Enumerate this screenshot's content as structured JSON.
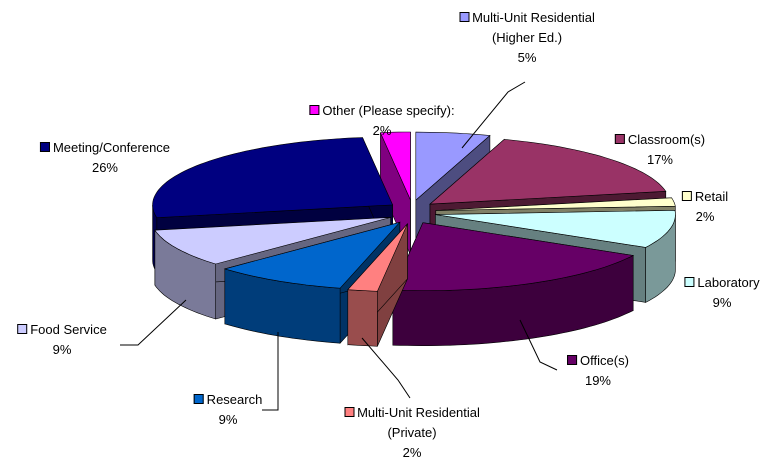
{
  "chart_data": {
    "type": "pie",
    "categories": [
      "Multi-Unit Residential (Higher Ed.)",
      "Classroom(s)",
      "Retail",
      "Laboratory",
      "Office(s)",
      "Multi-Unit Residential (Private)",
      "Research",
      "Food Service",
      "Meeting/Conference",
      "Other (Please specify):"
    ],
    "values": [
      5,
      17,
      2,
      9,
      19,
      2,
      9,
      9,
      26,
      2
    ],
    "value_labels": [
      "5%",
      "17%",
      "2%",
      "9%",
      "19%",
      "2%",
      "9%",
      "9%",
      "26%",
      "2%"
    ],
    "colors": [
      "#9999ff",
      "#993366",
      "#ffffcc",
      "#ccffff",
      "#660066",
      "#ff8080",
      "#0066cc",
      "#ccccff",
      "#000080",
      "#ff00ff"
    ]
  }
}
